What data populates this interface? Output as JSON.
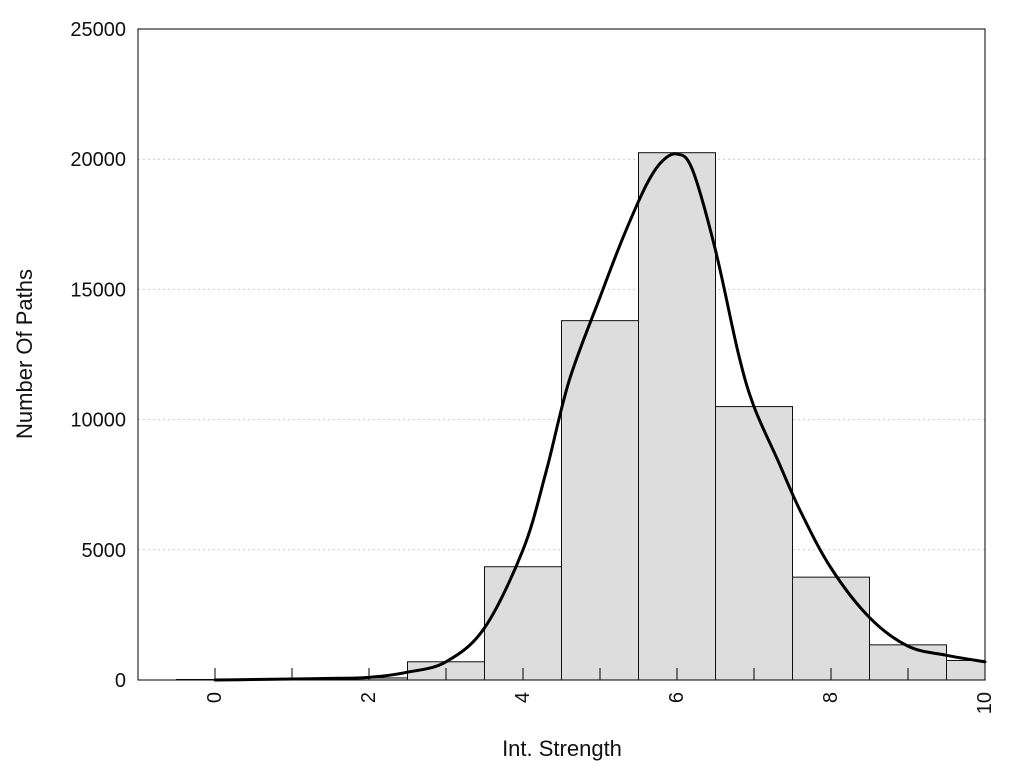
{
  "chart_data": {
    "type": "bar",
    "title": "",
    "xlabel": "Int. Strength",
    "ylabel": "Number Of Paths",
    "xlim": [
      -1,
      10
    ],
    "ylim": [
      0,
      25000
    ],
    "x_ticks": [
      0,
      2,
      4,
      6,
      8,
      10
    ],
    "y_ticks": [
      0,
      5000,
      10000,
      15000,
      20000,
      25000
    ],
    "x_tick_labels": [
      "0",
      "2",
      "4",
      "6",
      "8",
      "10"
    ],
    "y_tick_labels": [
      "0",
      "5000",
      "10000",
      "15000",
      "20000",
      "25000"
    ],
    "y_grid": true,
    "bar_width": 1,
    "bars": [
      {
        "x": 0,
        "value": 20
      },
      {
        "x": 1,
        "value": 40
      },
      {
        "x": 2,
        "value": 80
      },
      {
        "x": 3,
        "value": 700
      },
      {
        "x": 4,
        "value": 4350
      },
      {
        "x": 5,
        "value": 13800
      },
      {
        "x": 6,
        "value": 20250
      },
      {
        "x": 7,
        "value": 10500
      },
      {
        "x": 8,
        "value": 3950
      },
      {
        "x": 9,
        "value": 1350
      },
      {
        "x": 10,
        "value": 750
      }
    ],
    "curve": {
      "x": [
        0,
        0.5,
        1,
        1.5,
        2,
        2.5,
        3,
        3.5,
        4,
        4.3,
        4.6,
        5,
        5.3,
        5.6,
        5.8,
        6,
        6.2,
        6.5,
        6.8,
        7,
        7.3,
        7.6,
        8,
        8.5,
        9,
        9.5,
        10
      ],
      "y": [
        0,
        20,
        40,
        60,
        100,
        300,
        700,
        2000,
        5000,
        8000,
        11500,
        14700,
        17000,
        19000,
        19900,
        20200,
        19600,
        16500,
        12500,
        10500,
        8500,
        6500,
        4300,
        2400,
        1300,
        950,
        700
      ]
    },
    "colors": {
      "bar_fill": "#dddddd",
      "bar_stroke": "#111111",
      "curve": "#000000",
      "grid": "#cccccc",
      "frame": "#000000"
    }
  }
}
